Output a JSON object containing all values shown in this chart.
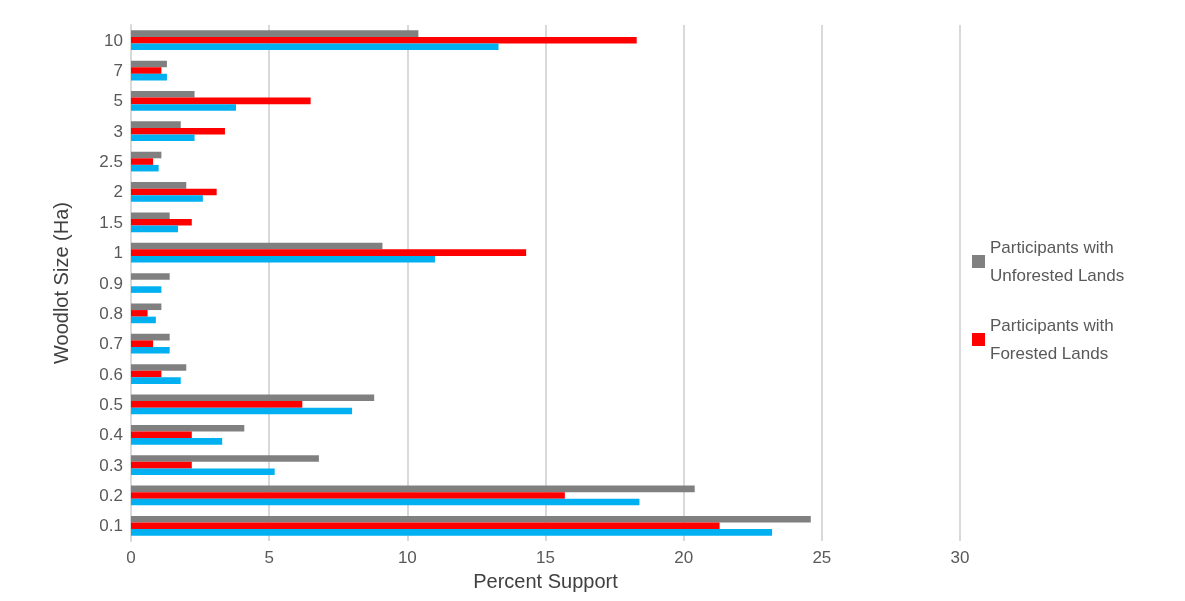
{
  "chart_data": {
    "type": "bar",
    "orientation": "horizontal",
    "xlabel": "Percent Support",
    "ylabel": "Woodlot Size (Ha)",
    "categories": [
      "10",
      "7",
      "5",
      "3",
      "2.5",
      "2",
      "1.5",
      "1",
      "0.9",
      "0.8",
      "0.7",
      "0.6",
      "0.5",
      "0.4",
      "0.3",
      "0.2",
      "0.1"
    ],
    "series": [
      {
        "name": "Participants with Unforested Lands",
        "color": "#808080",
        "values": [
          10.4,
          1.3,
          2.3,
          1.8,
          1.1,
          2.0,
          1.4,
          9.1,
          1.4,
          1.1,
          1.4,
          2.0,
          8.8,
          4.1,
          6.8,
          20.4,
          24.6
        ]
      },
      {
        "name": "Participants with Forested Lands",
        "color": "#ff0000",
        "values": [
          18.3,
          1.1,
          6.5,
          3.4,
          0.8,
          3.1,
          2.2,
          14.3,
          null,
          0.6,
          0.8,
          1.1,
          6.2,
          2.2,
          2.2,
          15.7,
          21.3
        ]
      },
      {
        "color": "#00b0f0",
        "values": [
          13.3,
          1.3,
          3.8,
          2.3,
          1.0,
          2.6,
          1.7,
          11.0,
          1.1,
          0.9,
          1.4,
          1.8,
          8.0,
          3.3,
          5.2,
          18.4,
          23.2
        ]
      }
    ],
    "xlim": [
      0,
      30
    ],
    "xticks": [
      0,
      5,
      10,
      15,
      20,
      25,
      30
    ],
    "grid": "x",
    "legend": "right"
  }
}
